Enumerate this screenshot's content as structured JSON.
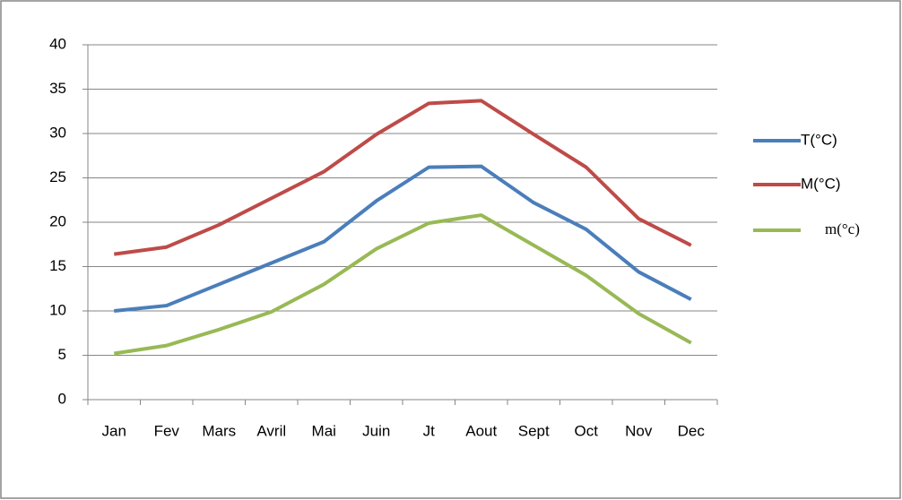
{
  "chart_data": {
    "type": "line",
    "categories": [
      "Jan",
      "Fev",
      "Mars",
      "Avril",
      "Mai",
      "Juin",
      "Jt",
      "Aout",
      "Sept",
      "Oct",
      "Nov",
      "Dec"
    ],
    "series": [
      {
        "name": "T(°C)",
        "color": "#4a7ebb",
        "values": [
          10,
          10.6,
          13,
          15.4,
          17.8,
          22.4,
          26.2,
          26.3,
          22.2,
          19.2,
          14.4,
          11.3
        ]
      },
      {
        "name": "M(°C)",
        "color": "#be4b48",
        "values": [
          16.4,
          17.2,
          19.7,
          22.7,
          25.7,
          29.9,
          33.4,
          33.7,
          29.9,
          26.2,
          20.4,
          17.4
        ]
      },
      {
        "name": "m(°c)",
        "color": "#98b954",
        "values": [
          5.2,
          6.1,
          7.9,
          9.9,
          13,
          17,
          19.9,
          20.8,
          17.4,
          14,
          9.7,
          6.4
        ]
      }
    ],
    "ylim": [
      0,
      40
    ],
    "yticks": [
      0,
      5,
      10,
      15,
      20,
      25,
      30,
      35,
      40
    ],
    "grid": true,
    "legend": "right"
  }
}
